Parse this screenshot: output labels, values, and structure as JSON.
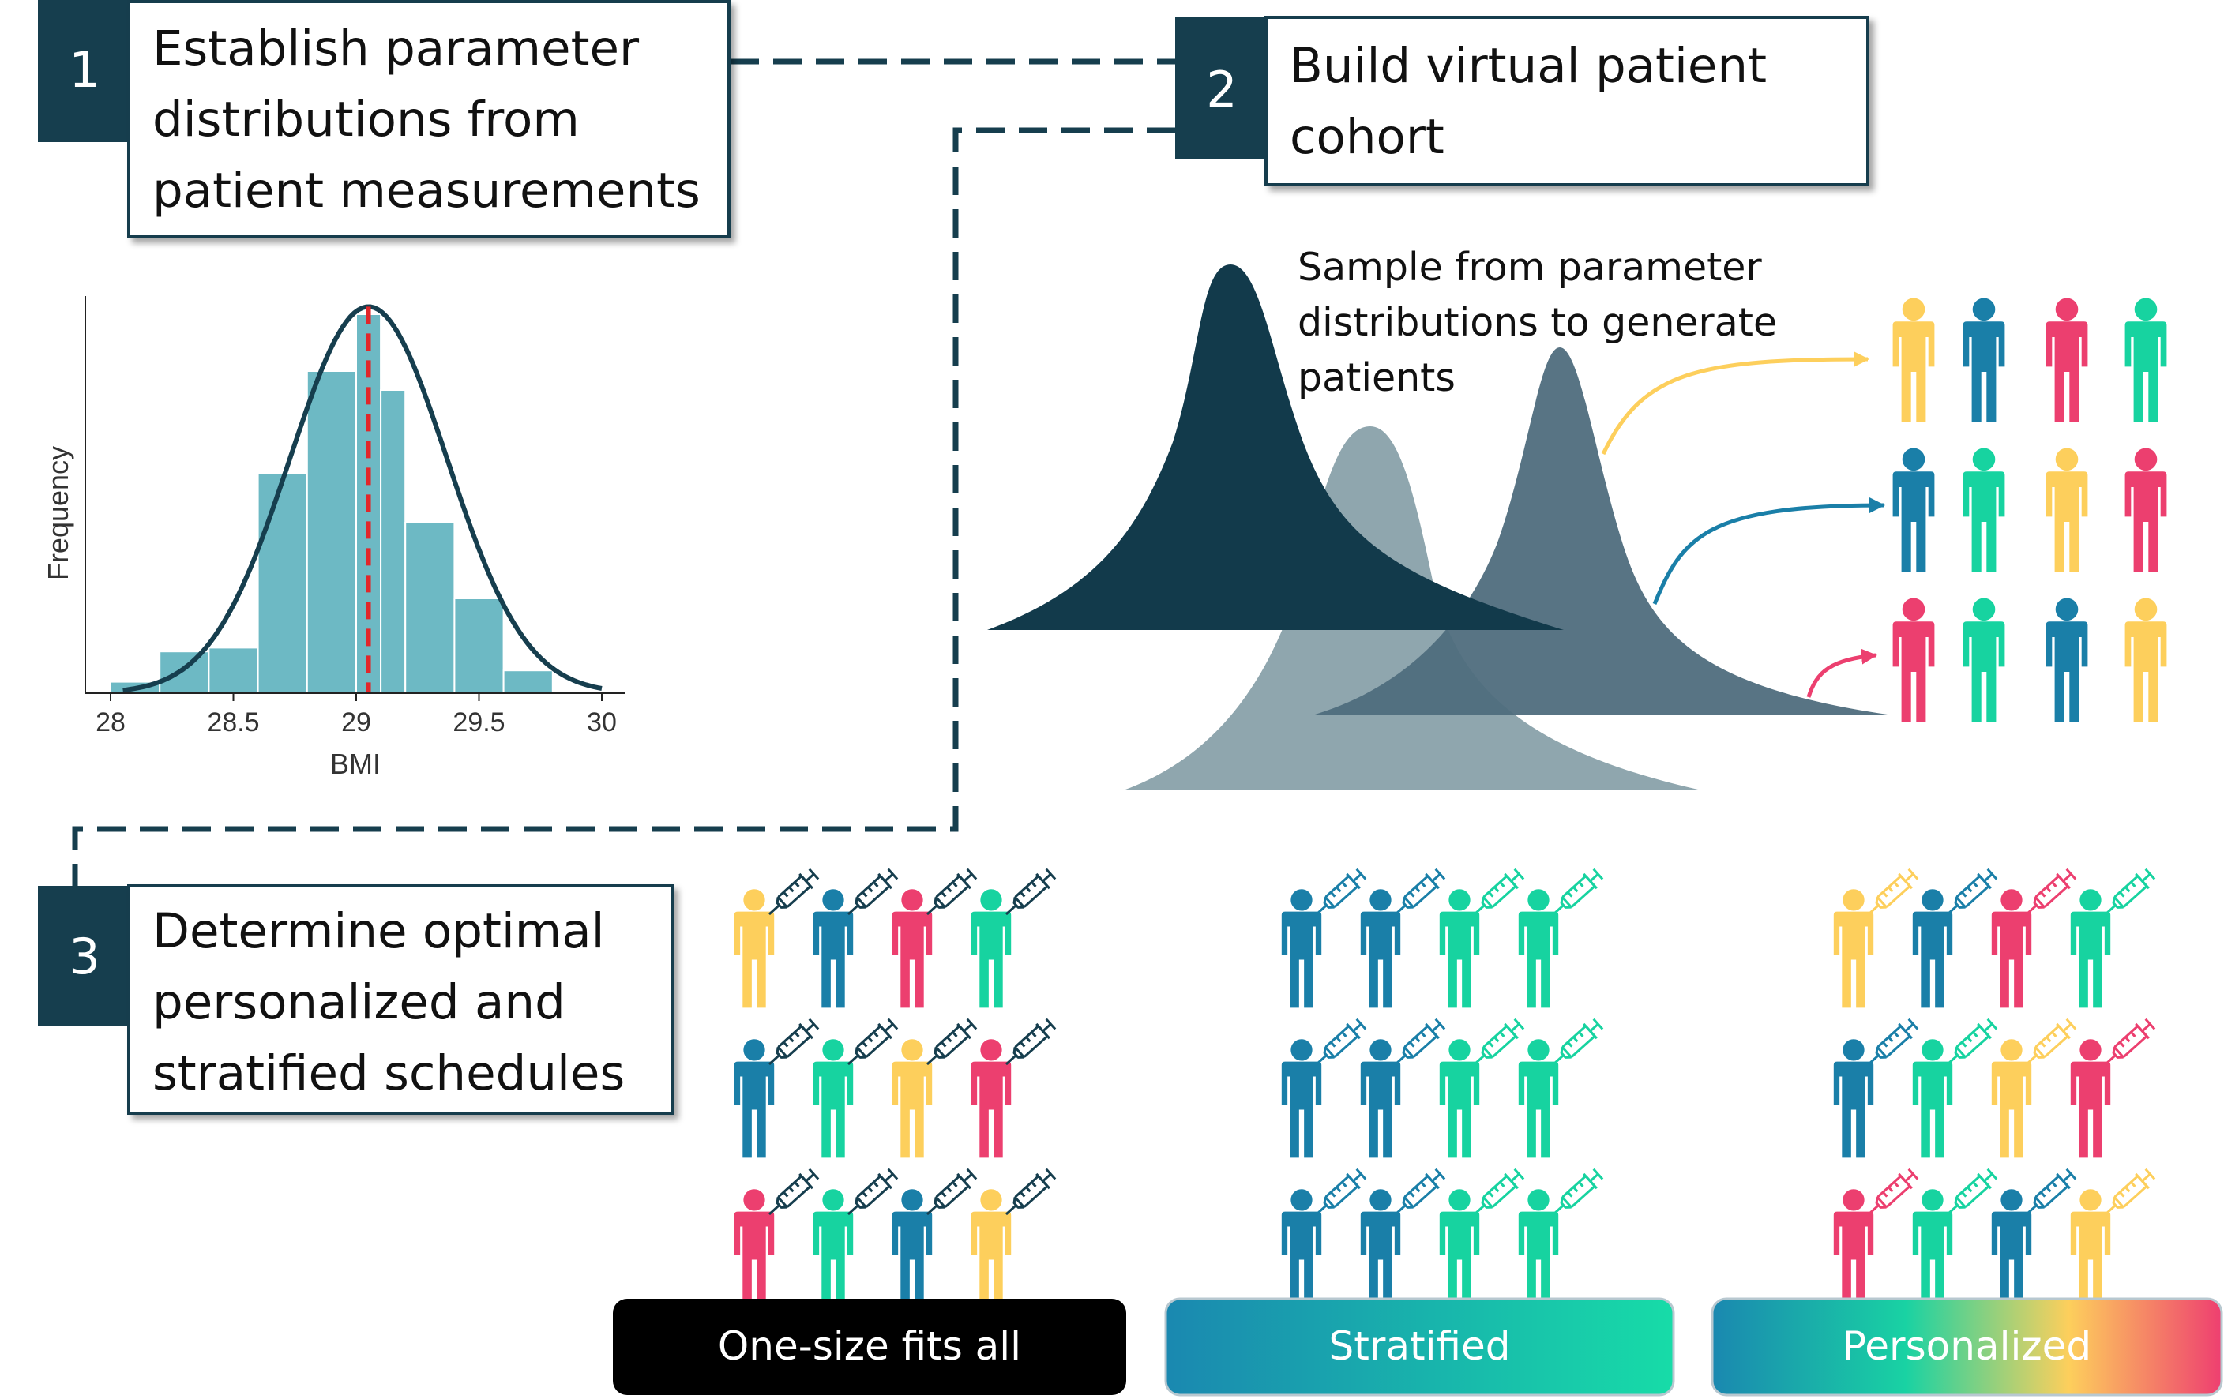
{
  "colors": {
    "navy": "#163e4e",
    "teal_bar": "#6db9c4",
    "yellow": "#fdcf5c",
    "blue": "#1a7fa8",
    "pink": "#ec3f6f",
    "green": "#17d3a0",
    "dist_dark": "#123a4b",
    "dist_mid": "#4f6d7d",
    "dist_light": "#8fa6ae"
  },
  "steps": [
    {
      "number": "1",
      "lines": [
        "Establish parameter",
        "distributions from",
        "patient measurements"
      ]
    },
    {
      "number": "2",
      "lines": [
        "Build virtual patient",
        "cohort"
      ]
    },
    {
      "number": "3",
      "lines": [
        "Determine optimal",
        "personalized and",
        "stratified schedules"
      ]
    }
  ],
  "sample_caption": [
    "Sample from parameter",
    "distributions to generate",
    "patients"
  ],
  "cohort_rows": [
    [
      "yellow",
      "blue",
      "pink",
      "green"
    ],
    [
      "blue",
      "green",
      "yellow",
      "pink"
    ],
    [
      "pink",
      "green",
      "blue",
      "yellow"
    ]
  ],
  "chart_data": {
    "type": "bar",
    "title": "",
    "xlabel": "BMI",
    "ylabel": "Frequency",
    "x_ticks": [
      "28",
      "28.5",
      "29",
      "29.5",
      "30"
    ],
    "xlim": [
      27.95,
      30.05
    ],
    "bin_edges": [
      28.0,
      28.1,
      28.2,
      28.3,
      28.4,
      28.5,
      28.6,
      28.7,
      28.8,
      28.9,
      29.0,
      29.1,
      29.2,
      29.3,
      29.4,
      29.5,
      29.6,
      29.7,
      29.8,
      29.9,
      30.0
    ],
    "bin_edges_used": [
      28.0,
      28.2,
      28.4,
      28.6,
      28.8,
      29.0,
      29.1,
      29.2,
      29.4,
      29.6,
      29.8,
      30.0
    ],
    "frequencies_relative": [
      0.03,
      0.11,
      0.12,
      0.58,
      0.85,
      1.0,
      0.8,
      0.45,
      0.25,
      0.06,
      0.0
    ],
    "fit_mean": 29.05,
    "fit_peak_relative": 1.02,
    "mean_line": 29.05,
    "grid": false
  },
  "strategies": [
    {
      "label": "One-size fits all",
      "syringe_mode": "dark",
      "people": [
        [
          "yellow",
          "blue",
          "pink",
          "green"
        ],
        [
          "blue",
          "green",
          "yellow",
          "pink"
        ],
        [
          "pink",
          "green",
          "blue",
          "yellow"
        ]
      ]
    },
    {
      "label": "Stratified",
      "syringe_mode": "stratified",
      "people": [
        [
          "blue",
          "blue",
          "green",
          "green"
        ],
        [
          "blue",
          "blue",
          "green",
          "green"
        ],
        [
          "blue",
          "blue",
          "green",
          "green"
        ]
      ]
    },
    {
      "label": "Personalized",
      "syringe_mode": "personal",
      "people": [
        [
          "yellow",
          "blue",
          "pink",
          "green"
        ],
        [
          "blue",
          "green",
          "yellow",
          "pink"
        ],
        [
          "pink",
          "green",
          "blue",
          "yellow"
        ]
      ]
    }
  ]
}
